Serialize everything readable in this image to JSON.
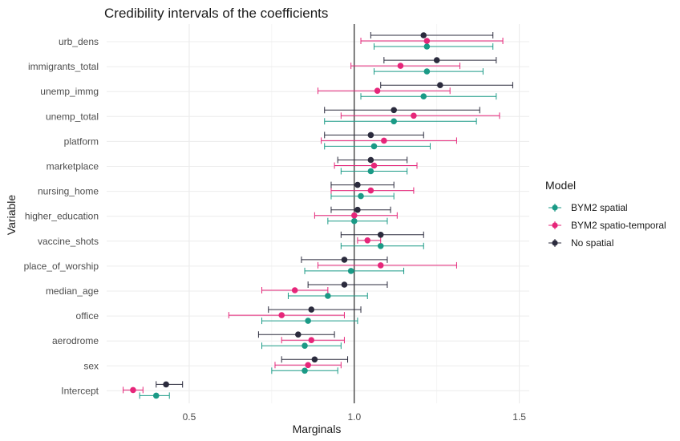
{
  "chart_data": {
    "type": "scatter",
    "subtype": "forest-plot-with-error-bars",
    "title": "Credibility intervals of the coefficients",
    "xlabel": "Marginals",
    "ylabel": "Variable",
    "xlim": [
      0.25,
      1.53
    ],
    "xticks": [
      0.5,
      1.0,
      1.5
    ],
    "xtick_labels": [
      "0.5",
      "1.0",
      "1.5"
    ],
    "reference_line_x": 1.0,
    "grid": true,
    "legend": {
      "title": "Model",
      "position": "right"
    },
    "categories": [
      "urb_dens",
      "immigrants_total",
      "unemp_immg",
      "unemp_total",
      "platform",
      "marketplace",
      "nursing_home",
      "higher_education",
      "vaccine_shots",
      "place_of_worship",
      "median_age",
      "office",
      "aerodrome",
      "sex",
      "Intercept"
    ],
    "series": [
      {
        "name": "BYM2 spatial",
        "color": "#1a9a86",
        "estimate": [
          1.22,
          1.22,
          1.21,
          1.12,
          1.06,
          1.05,
          1.02,
          1.0,
          1.08,
          0.99,
          0.92,
          0.86,
          0.85,
          0.85,
          0.4
        ],
        "lower": [
          1.06,
          1.06,
          1.02,
          0.91,
          0.91,
          0.96,
          0.93,
          0.92,
          0.96,
          0.85,
          0.8,
          0.72,
          0.72,
          0.75,
          0.35
        ],
        "upper": [
          1.42,
          1.39,
          1.43,
          1.37,
          1.23,
          1.16,
          1.12,
          1.1,
          1.21,
          1.15,
          1.04,
          1.01,
          0.96,
          0.95,
          0.44
        ]
      },
      {
        "name": "BYM2 spatio-temporal",
        "color": "#e6267a",
        "estimate": [
          1.22,
          1.14,
          1.07,
          1.18,
          1.09,
          1.06,
          1.05,
          1.0,
          1.04,
          1.08,
          0.82,
          0.78,
          0.87,
          0.86,
          0.33
        ],
        "lower": [
          1.02,
          0.99,
          0.89,
          0.96,
          0.9,
          0.94,
          0.93,
          0.88,
          1.01,
          0.89,
          0.72,
          0.62,
          0.78,
          0.76,
          0.3
        ],
        "upper": [
          1.45,
          1.32,
          1.29,
          1.44,
          1.31,
          1.19,
          1.18,
          1.13,
          1.08,
          1.31,
          0.92,
          0.97,
          0.97,
          0.96,
          0.36
        ]
      },
      {
        "name": "No spatial",
        "color": "#2b2b3d",
        "estimate": [
          1.21,
          1.25,
          1.26,
          1.12,
          1.05,
          1.05,
          1.01,
          1.01,
          1.08,
          0.97,
          0.97,
          0.87,
          0.83,
          0.88,
          0.43
        ],
        "lower": [
          1.05,
          1.09,
          1.08,
          0.91,
          0.91,
          0.95,
          0.93,
          0.93,
          0.96,
          0.84,
          0.86,
          0.74,
          0.71,
          0.78,
          0.4
        ],
        "upper": [
          1.42,
          1.43,
          1.48,
          1.38,
          1.21,
          1.16,
          1.12,
          1.11,
          1.21,
          1.1,
          1.1,
          1.02,
          0.94,
          0.98,
          0.48
        ]
      }
    ]
  }
}
